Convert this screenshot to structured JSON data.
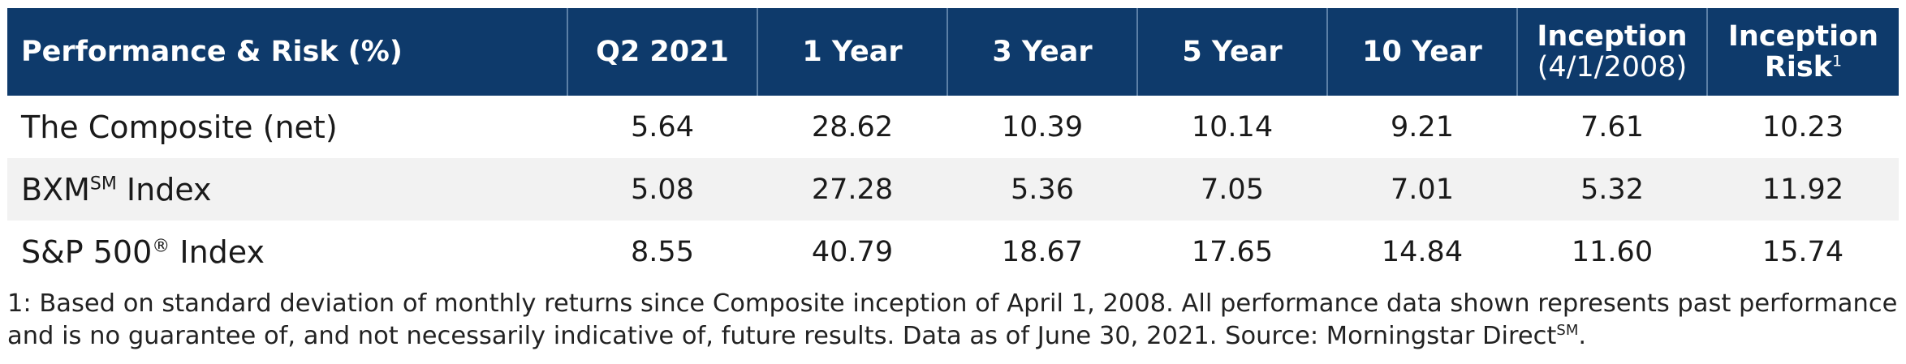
{
  "table": {
    "header": {
      "label": "Performance & Risk (%)",
      "columns": [
        {
          "line1": "Q2 2021"
        },
        {
          "line1": "1 Year"
        },
        {
          "line1": "3 Year"
        },
        {
          "line1": "5 Year"
        },
        {
          "line1": "10 Year"
        },
        {
          "line1": "Inception",
          "line2": "(4/1/2008)"
        },
        {
          "line1": "Inception",
          "line2": "Risk",
          "sup": "1"
        }
      ]
    },
    "rows": [
      {
        "name": "The Composite (net)",
        "sup": "",
        "name_after": "",
        "values": [
          "5.64",
          "28.62",
          "10.39",
          "10.14",
          "9.21",
          "7.61",
          "10.23"
        ]
      },
      {
        "name": "BXM",
        "sup": "SM",
        "name_after": " Index",
        "values": [
          "5.08",
          "27.28",
          "5.36",
          "7.05",
          "7.01",
          "5.32",
          "11.92"
        ]
      },
      {
        "name": "S&P 500",
        "sup": "®",
        "name_after": " Index",
        "values": [
          "8.55",
          "40.79",
          "18.67",
          "17.65",
          "14.84",
          "11.60",
          "15.74"
        ]
      }
    ]
  },
  "footnote": {
    "text": "1: Based on standard deviation of monthly returns since Composite inception of April 1, 2008. All performance data shown represents past performance and is no guarantee of, and not necessarily indicative of, future results. Data as of June 30, 2021. Source: Morningstar Direct",
    "sup": "SM",
    "end": "."
  }
}
